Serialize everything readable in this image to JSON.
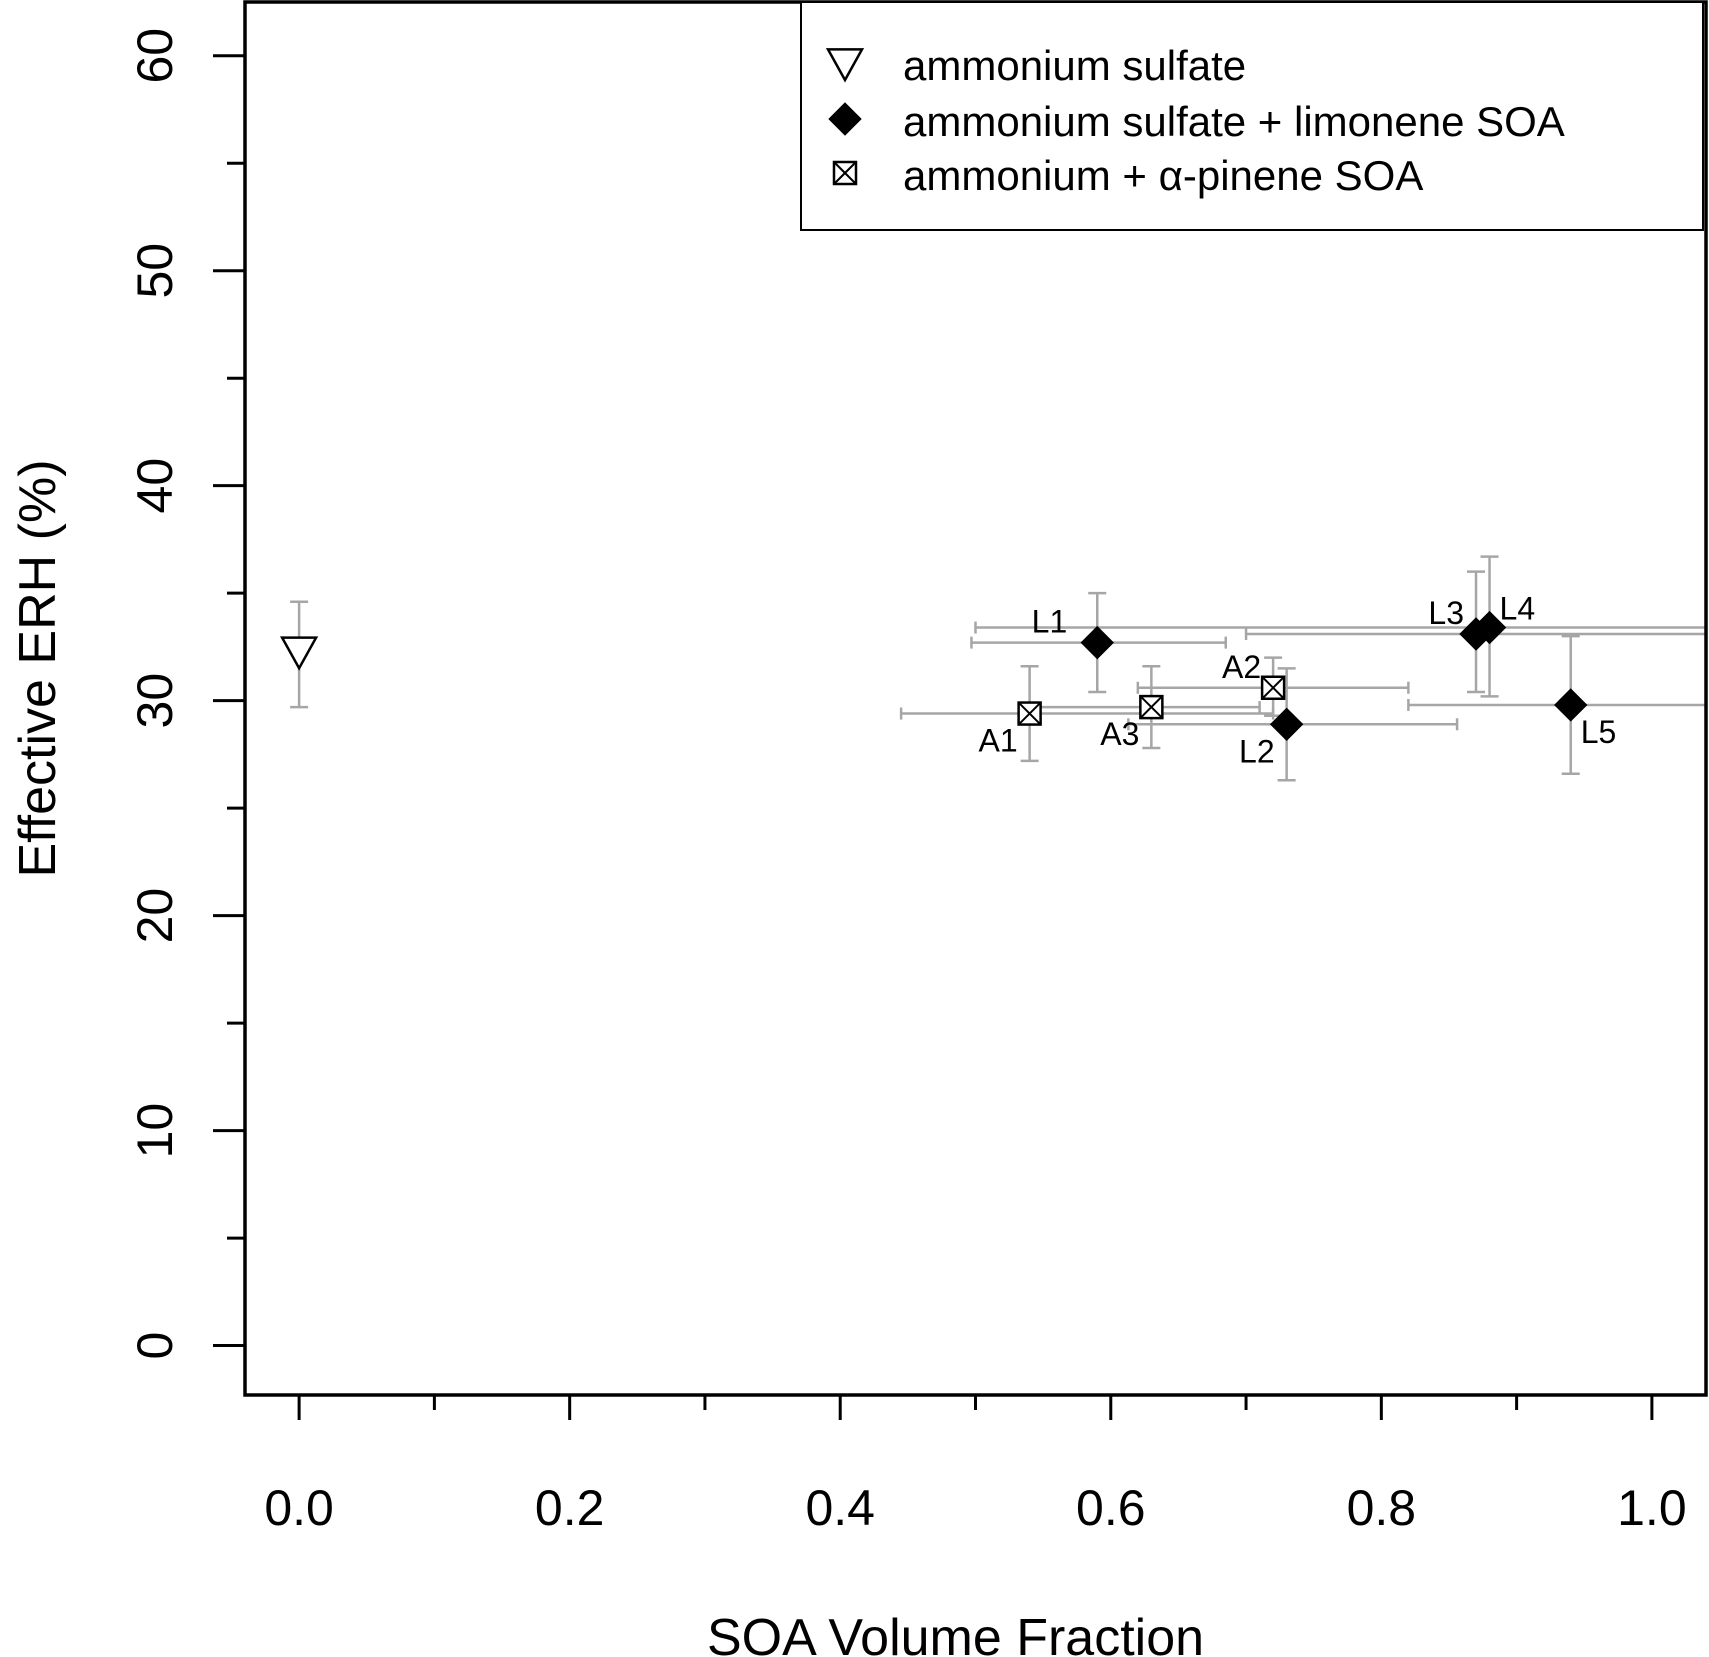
{
  "chart_data": {
    "type": "scatter",
    "xlabel": "SOA Volume Fraction",
    "ylabel": "Effective ERH (%)",
    "xlim": [
      -0.04,
      1.04
    ],
    "ylim": [
      -2.3,
      62.5
    ],
    "x_ticks": [
      0.0,
      0.2,
      0.4,
      0.6,
      0.8,
      1.0
    ],
    "x_tick_labels": [
      "0.0",
      "0.2",
      "0.4",
      "0.6",
      "0.8",
      "1.0"
    ],
    "x_minor_ticks": [
      0.1,
      0.3,
      0.5,
      0.7,
      0.9
    ],
    "y_ticks": [
      0,
      10,
      20,
      30,
      40,
      50,
      60
    ],
    "y_tick_labels": [
      "0",
      "10",
      "20",
      "30",
      "40",
      "50",
      "60"
    ],
    "y_minor_ticks": [
      5,
      15,
      25,
      35,
      45,
      55
    ],
    "grid": false,
    "legend_position": "top-right",
    "colors": {
      "axis": "#000000",
      "error_bar": "#a6a6a6",
      "marker": "#000000"
    },
    "series": [
      {
        "name": "ammonium sulfate",
        "marker": "triangle-down-open",
        "points": [
          {
            "label": "",
            "x": 0.0,
            "y": 32.3,
            "y_err": [
              29.7,
              34.6
            ]
          }
        ]
      },
      {
        "name": "ammonium sulfate + limonene SOA",
        "marker": "diamond-filled",
        "points": [
          {
            "label": "L1",
            "x": 0.59,
            "y": 32.7,
            "x_err": [
              0.497,
              0.685
            ],
            "y_err": [
              30.4,
              35.0
            ]
          },
          {
            "label": "L2",
            "x": 0.73,
            "y": 28.9,
            "x_err": [
              0.613,
              0.856
            ],
            "y_err": [
              26.3,
              31.5
            ]
          },
          {
            "label": "L3",
            "x": 0.87,
            "y": 33.1,
            "x_err": [
              0.7,
              1.04
            ],
            "y_err": [
              30.4,
              36.0
            ]
          },
          {
            "label": "L4",
            "x": 0.88,
            "y": 33.4,
            "x_err": [
              0.5,
              1.04
            ],
            "y_err": [
              30.2,
              36.7
            ]
          },
          {
            "label": "L5",
            "x": 0.94,
            "y": 29.8,
            "x_err": [
              0.82,
              1.04
            ],
            "y_err": [
              26.6,
              33.0
            ]
          }
        ]
      },
      {
        "name": "ammonium + α-pinene SOA",
        "marker": "square-x",
        "points": [
          {
            "label": "A1",
            "x": 0.54,
            "y": 29.4,
            "x_err": [
              0.445,
              0.72
            ],
            "y_err": [
              27.2,
              31.6
            ]
          },
          {
            "label": "A2",
            "x": 0.72,
            "y": 30.6,
            "x_err": [
              0.62,
              0.82
            ],
            "y_err": [
              29.3,
              32.0
            ]
          },
          {
            "label": "A3",
            "x": 0.63,
            "y": 29.7,
            "x_err": [
              0.54,
              0.71
            ],
            "y_err": [
              27.8,
              31.6
            ]
          }
        ]
      }
    ]
  }
}
